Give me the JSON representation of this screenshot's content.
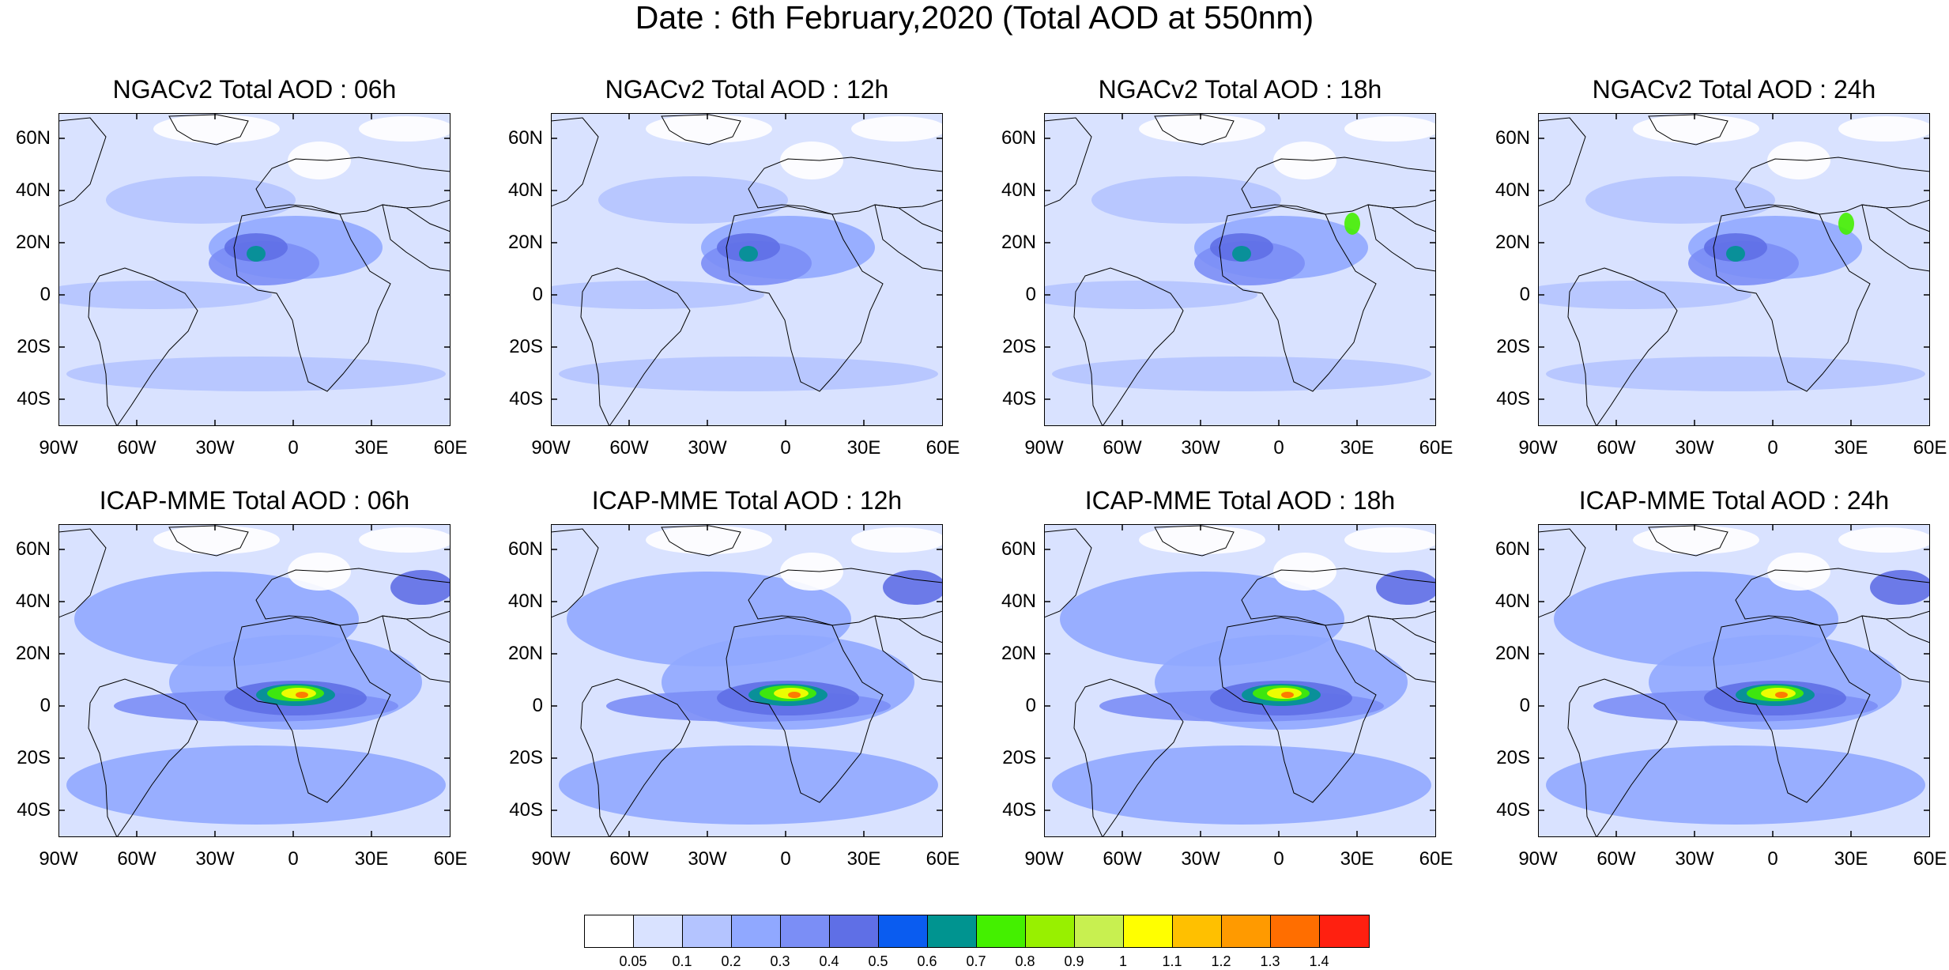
{
  "title": "Date : 6th February,2020 (Total AOD at 550nm)",
  "panels": [
    {
      "title": "NGACv2 Total AOD : 06h"
    },
    {
      "title": "NGACv2 Total AOD : 12h"
    },
    {
      "title": "NGACv2 Total AOD : 18h"
    },
    {
      "title": "NGACv2 Total AOD : 24h"
    },
    {
      "title": "ICAP-MME Total AOD : 06h"
    },
    {
      "title": "ICAP-MME Total AOD : 12h"
    },
    {
      "title": "ICAP-MME Total AOD : 18h"
    },
    {
      "title": "ICAP-MME Total AOD : 24h"
    }
  ],
  "lat_labels": [
    "60N",
    "40N",
    "20N",
    "0",
    "20S",
    "40S"
  ],
  "lon_labels": [
    "90W",
    "60W",
    "30W",
    "0",
    "30E",
    "60E"
  ],
  "colorbar": {
    "colors": [
      "#ffffff",
      "#d9e2ff",
      "#b4c4ff",
      "#90a8ff",
      "#7b8ef6",
      "#5f6fe6",
      "#0a5cf0",
      "#009490",
      "#44f000",
      "#98f000",
      "#c8f050",
      "#ffff00",
      "#ffc000",
      "#ff9a00",
      "#ff6e00",
      "#ff2010"
    ],
    "labels": [
      "0.05",
      "0.1",
      "0.2",
      "0.3",
      "0.4",
      "0.5",
      "0.6",
      "0.7",
      "0.8",
      "0.9",
      "1",
      "1.1",
      "1.2",
      "1.3",
      "1.4"
    ]
  }
}
